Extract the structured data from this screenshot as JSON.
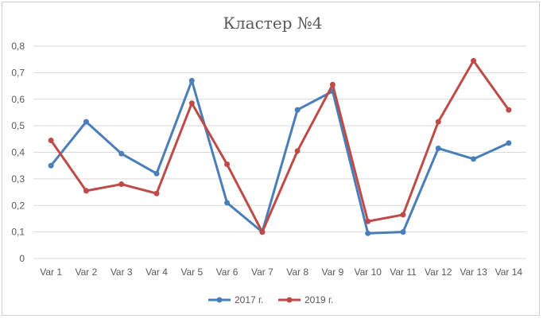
{
  "chart_data": {
    "type": "line",
    "title": "Кластер №4",
    "categories": [
      "Var 1",
      "Var 2",
      "Var 3",
      "Var 4",
      "Var 5",
      "Var 6",
      "Var 7",
      "Var 8",
      "Var 9",
      "Var 10",
      "Var 11",
      "Var 12",
      "Var 13",
      "Var 14"
    ],
    "y_ticks": [
      "0",
      "0,1",
      "0,2",
      "0,3",
      "0,4",
      "0,5",
      "0,6",
      "0,7",
      "0,8"
    ],
    "ylim": [
      0,
      0.8
    ],
    "grid": true,
    "legend_position": "bottom",
    "series": [
      {
        "name": "2017 г.",
        "color": "#4a7ebb",
        "values": [
          0.35,
          0.515,
          0.395,
          0.32,
          0.67,
          0.21,
          0.1,
          0.56,
          0.63,
          0.095,
          0.1,
          0.415,
          0.375,
          0.435
        ]
      },
      {
        "name": "2019 г.",
        "color": "#be4b48",
        "values": [
          0.445,
          0.255,
          0.28,
          0.245,
          0.585,
          0.355,
          0.1,
          0.405,
          0.655,
          0.14,
          0.165,
          0.515,
          0.745,
          0.56
        ]
      }
    ]
  }
}
